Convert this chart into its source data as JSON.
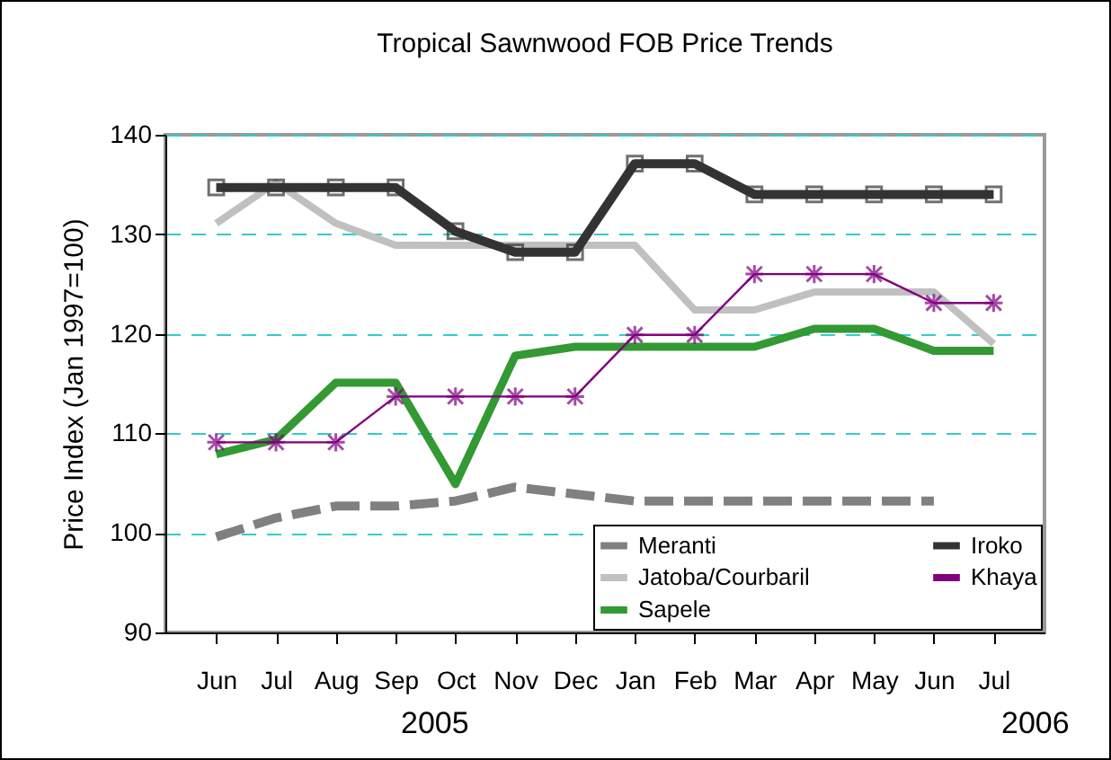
{
  "chart_data": {
    "type": "line",
    "title": "Tropical Sawnwood FOB Price Trends",
    "ylabel": "Price Index (Jan 1997=100)",
    "categories": [
      "Jun",
      "Jul",
      "Aug",
      "Sep",
      "Oct",
      "Nov",
      "Dec",
      "Jan",
      "Feb",
      "Mar",
      "Apr",
      "May",
      "Jun",
      "Jul"
    ],
    "series": [
      {
        "name": "Meranti",
        "color": "#808080",
        "line_style": "dashed",
        "marker": "none",
        "values": [
          99.6,
          101.5,
          102.7,
          102.7,
          103.2,
          104.6,
          103.9,
          103.2,
          103.2,
          103.2,
          103.2,
          103.2,
          103.2,
          null
        ]
      },
      {
        "name": "Jatoba/Courbaril",
        "color": "#c0c0c0",
        "line_style": "solid",
        "marker": "none",
        "values": [
          131.1,
          135.2,
          131.1,
          128.9,
          128.9,
          128.9,
          128.9,
          128.9,
          122.4,
          122.4,
          124.2,
          124.2,
          124.2,
          119.0
        ]
      },
      {
        "name": "Sapele",
        "color": "#339933",
        "line_style": "solid",
        "marker": "none",
        "values": [
          107.9,
          109.4,
          115.1,
          115.1,
          104.9,
          117.8,
          118.7,
          118.7,
          118.7,
          118.7,
          120.5,
          120.5,
          118.3,
          118.3
        ]
      },
      {
        "name": "Iroko",
        "color": "#333333",
        "line_style": "solid",
        "marker": "square",
        "values": [
          134.7,
          134.7,
          134.7,
          134.7,
          130.3,
          128.2,
          128.2,
          137.1,
          137.1,
          134.0,
          134.0,
          134.0,
          134.0,
          134.0
        ]
      },
      {
        "name": "Khaya",
        "color": "#800080",
        "line_style": "solid",
        "marker": "cross",
        "values": [
          109.1,
          109.1,
          109.1,
          113.7,
          113.7,
          113.7,
          113.7,
          119.9,
          119.9,
          126.0,
          126.0,
          126.0,
          123.1,
          123.1
        ]
      }
    ],
    "ylim": [
      90,
      140
    ],
    "yticks": [
      90,
      100,
      110,
      120,
      130,
      140
    ],
    "grid": "y",
    "legend": "bottom right",
    "annotations": [
      "2005",
      "2006"
    ]
  }
}
